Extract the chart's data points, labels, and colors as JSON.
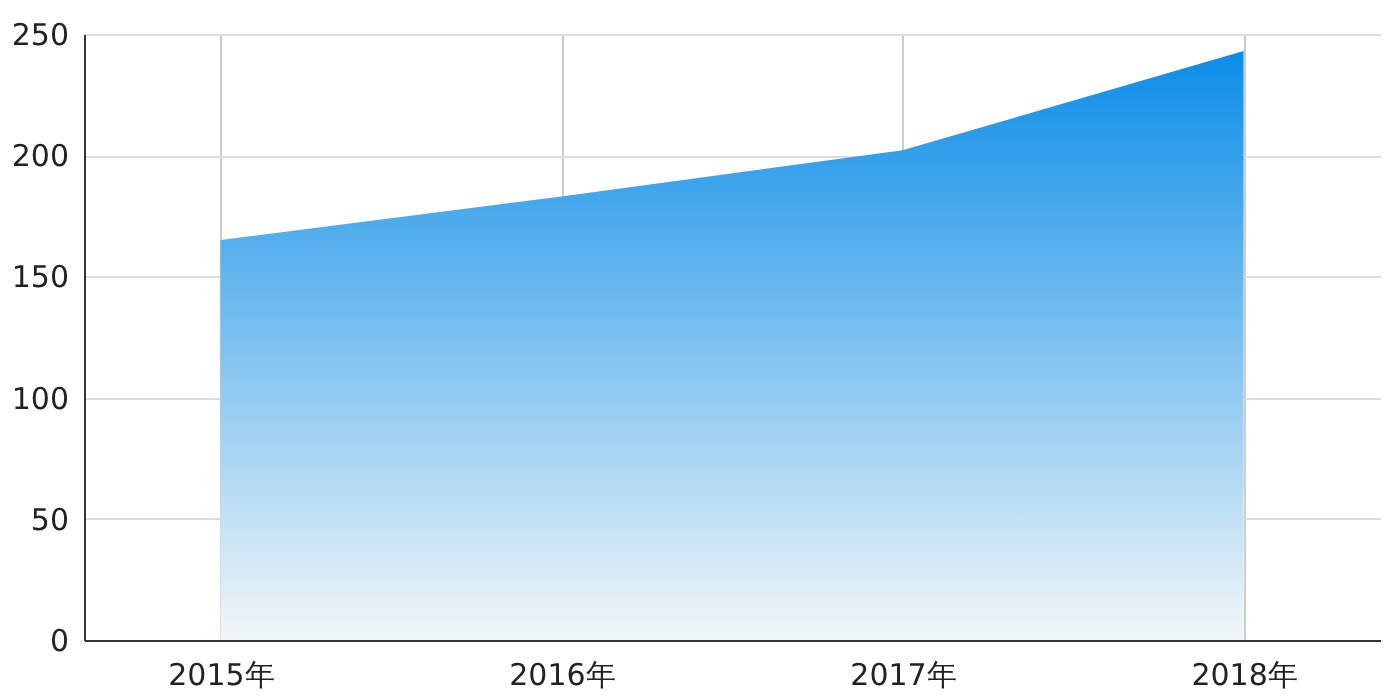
{
  "chart_data": {
    "type": "area",
    "categories": [
      "2015年",
      "2016年",
      "2017年",
      "2018年"
    ],
    "series": [
      {
        "color": "#0a8de8",
        "values": [
          165,
          183,
          202,
          243
        ]
      }
    ],
    "ylim": [
      0,
      250
    ],
    "yticks": [
      0,
      50,
      100,
      150,
      200,
      250
    ],
    "grid": true
  }
}
